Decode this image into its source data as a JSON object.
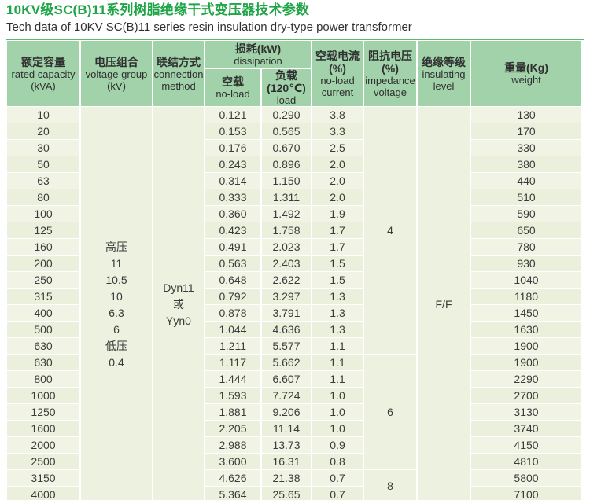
{
  "page": {
    "title": "10KV级SC(B)11系列树脂绝缘干式变压器技术参数",
    "subtitle": "Tech data of 10KV SC(B)11 series resin insulation dry-type power transformer"
  },
  "colors": {
    "title_green": "#1fa447",
    "header_bg": "#a1d2aa",
    "row_bg_light": "#f1f4e4",
    "row_bg_alt": "#eaf0db",
    "merged_cell_bg": "#edf1df",
    "table_top_line": "#5eb971",
    "table_bottom_line": "#d6e7c5",
    "grid_line": "#ffffff",
    "text": "#3b3b3b"
  },
  "table": {
    "headers": [
      {
        "zh": "额定容量",
        "en": "rated capacity\n(kVA)"
      },
      {
        "zh": "电压组合",
        "en": "voltage group\n(kV)"
      },
      {
        "zh": "联结方式",
        "en": "connection\nmethod"
      },
      {
        "zh": "损耗(kW)",
        "en": "dissipation"
      },
      {
        "zh": "空载",
        "en": "no-load"
      },
      {
        "zh": "负载(120℃)",
        "en": "load"
      },
      {
        "zh": "空载电流\n(%)",
        "en": "no-load\ncurrent"
      },
      {
        "zh": "阻抗电压\n(%)",
        "en": "impedance\nvoltage"
      },
      {
        "zh": "绝缘等级",
        "en": "insulating\nlevel"
      },
      {
        "zh": "重量(Kg)",
        "en": "weight"
      }
    ],
    "voltage_group_lines": [
      "高压",
      "11",
      "10.5",
      "10",
      "6.3",
      "6",
      "低压",
      "0.4"
    ],
    "connection_lines": [
      "Dyn11",
      "或",
      "Yyn0"
    ],
    "insulating_level": "F/F",
    "impedance_groups": [
      {
        "value": "4",
        "span": 15
      },
      {
        "value": "6",
        "span": 7
      },
      {
        "value": "8",
        "span": 2
      }
    ],
    "rows": [
      {
        "kva": "10",
        "no_load_loss": "0.121",
        "load_loss": "0.290",
        "no_load_current": "3.8",
        "weight": "130"
      },
      {
        "kva": "20",
        "no_load_loss": "0.153",
        "load_loss": "0.565",
        "no_load_current": "3.3",
        "weight": "170"
      },
      {
        "kva": "30",
        "no_load_loss": "0.176",
        "load_loss": "0.670",
        "no_load_current": "2.5",
        "weight": "330"
      },
      {
        "kva": "50",
        "no_load_loss": "0.243",
        "load_loss": "0.896",
        "no_load_current": "2.0",
        "weight": "380"
      },
      {
        "kva": "63",
        "no_load_loss": "0.314",
        "load_loss": "1.150",
        "no_load_current": "2.0",
        "weight": "440"
      },
      {
        "kva": "80",
        "no_load_loss": "0.333",
        "load_loss": "1.311",
        "no_load_current": "2.0",
        "weight": "510"
      },
      {
        "kva": "100",
        "no_load_loss": "0.360",
        "load_loss": "1.492",
        "no_load_current": "1.9",
        "weight": "590"
      },
      {
        "kva": "125",
        "no_load_loss": "0.423",
        "load_loss": "1.758",
        "no_load_current": "1.7",
        "weight": "650"
      },
      {
        "kva": "160",
        "no_load_loss": "0.491",
        "load_loss": "2.023",
        "no_load_current": "1.7",
        "weight": "780"
      },
      {
        "kva": "200",
        "no_load_loss": "0.563",
        "load_loss": "2.403",
        "no_load_current": "1.5",
        "weight": "930"
      },
      {
        "kva": "250",
        "no_load_loss": "0.648",
        "load_loss": "2.622",
        "no_load_current": "1.5",
        "weight": "1040"
      },
      {
        "kva": "315",
        "no_load_loss": "0.792",
        "load_loss": "3.297",
        "no_load_current": "1.3",
        "weight": "1180"
      },
      {
        "kva": "400",
        "no_load_loss": "0.878",
        "load_loss": "3.791",
        "no_load_current": "1.3",
        "weight": "1450"
      },
      {
        "kva": "500",
        "no_load_loss": "1.044",
        "load_loss": "4.636",
        "no_load_current": "1.3",
        "weight": "1630"
      },
      {
        "kva": "630",
        "no_load_loss": "1.211",
        "load_loss": "5.577",
        "no_load_current": "1.1",
        "weight": "1900"
      },
      {
        "kva": "630",
        "no_load_loss": "1.117",
        "load_loss": "5.662",
        "no_load_current": "1.1",
        "weight": "1900"
      },
      {
        "kva": "800",
        "no_load_loss": "1.444",
        "load_loss": "6.607",
        "no_load_current": "1.1",
        "weight": "2290"
      },
      {
        "kva": "1000",
        "no_load_loss": "1.593",
        "load_loss": "7.724",
        "no_load_current": "1.0",
        "weight": "2700"
      },
      {
        "kva": "1250",
        "no_load_loss": "1.881",
        "load_loss": "9.206",
        "no_load_current": "1.0",
        "weight": "3130"
      },
      {
        "kva": "1600",
        "no_load_loss": "2.205",
        "load_loss": "11.14",
        "no_load_current": "1.0",
        "weight": "3740"
      },
      {
        "kva": "2000",
        "no_load_loss": "2.988",
        "load_loss": "13.73",
        "no_load_current": "0.9",
        "weight": "4150"
      },
      {
        "kva": "2500",
        "no_load_loss": "3.600",
        "load_loss": "16.31",
        "no_load_current": "0.8",
        "weight": "4810"
      },
      {
        "kva": "3150",
        "no_load_loss": "4.626",
        "load_loss": "21.38",
        "no_load_current": "0.7",
        "weight": "5800"
      },
      {
        "kva": "4000",
        "no_load_loss": "5.364",
        "load_loss": "25.65",
        "no_load_current": "0.7",
        "weight": "7100"
      }
    ]
  }
}
